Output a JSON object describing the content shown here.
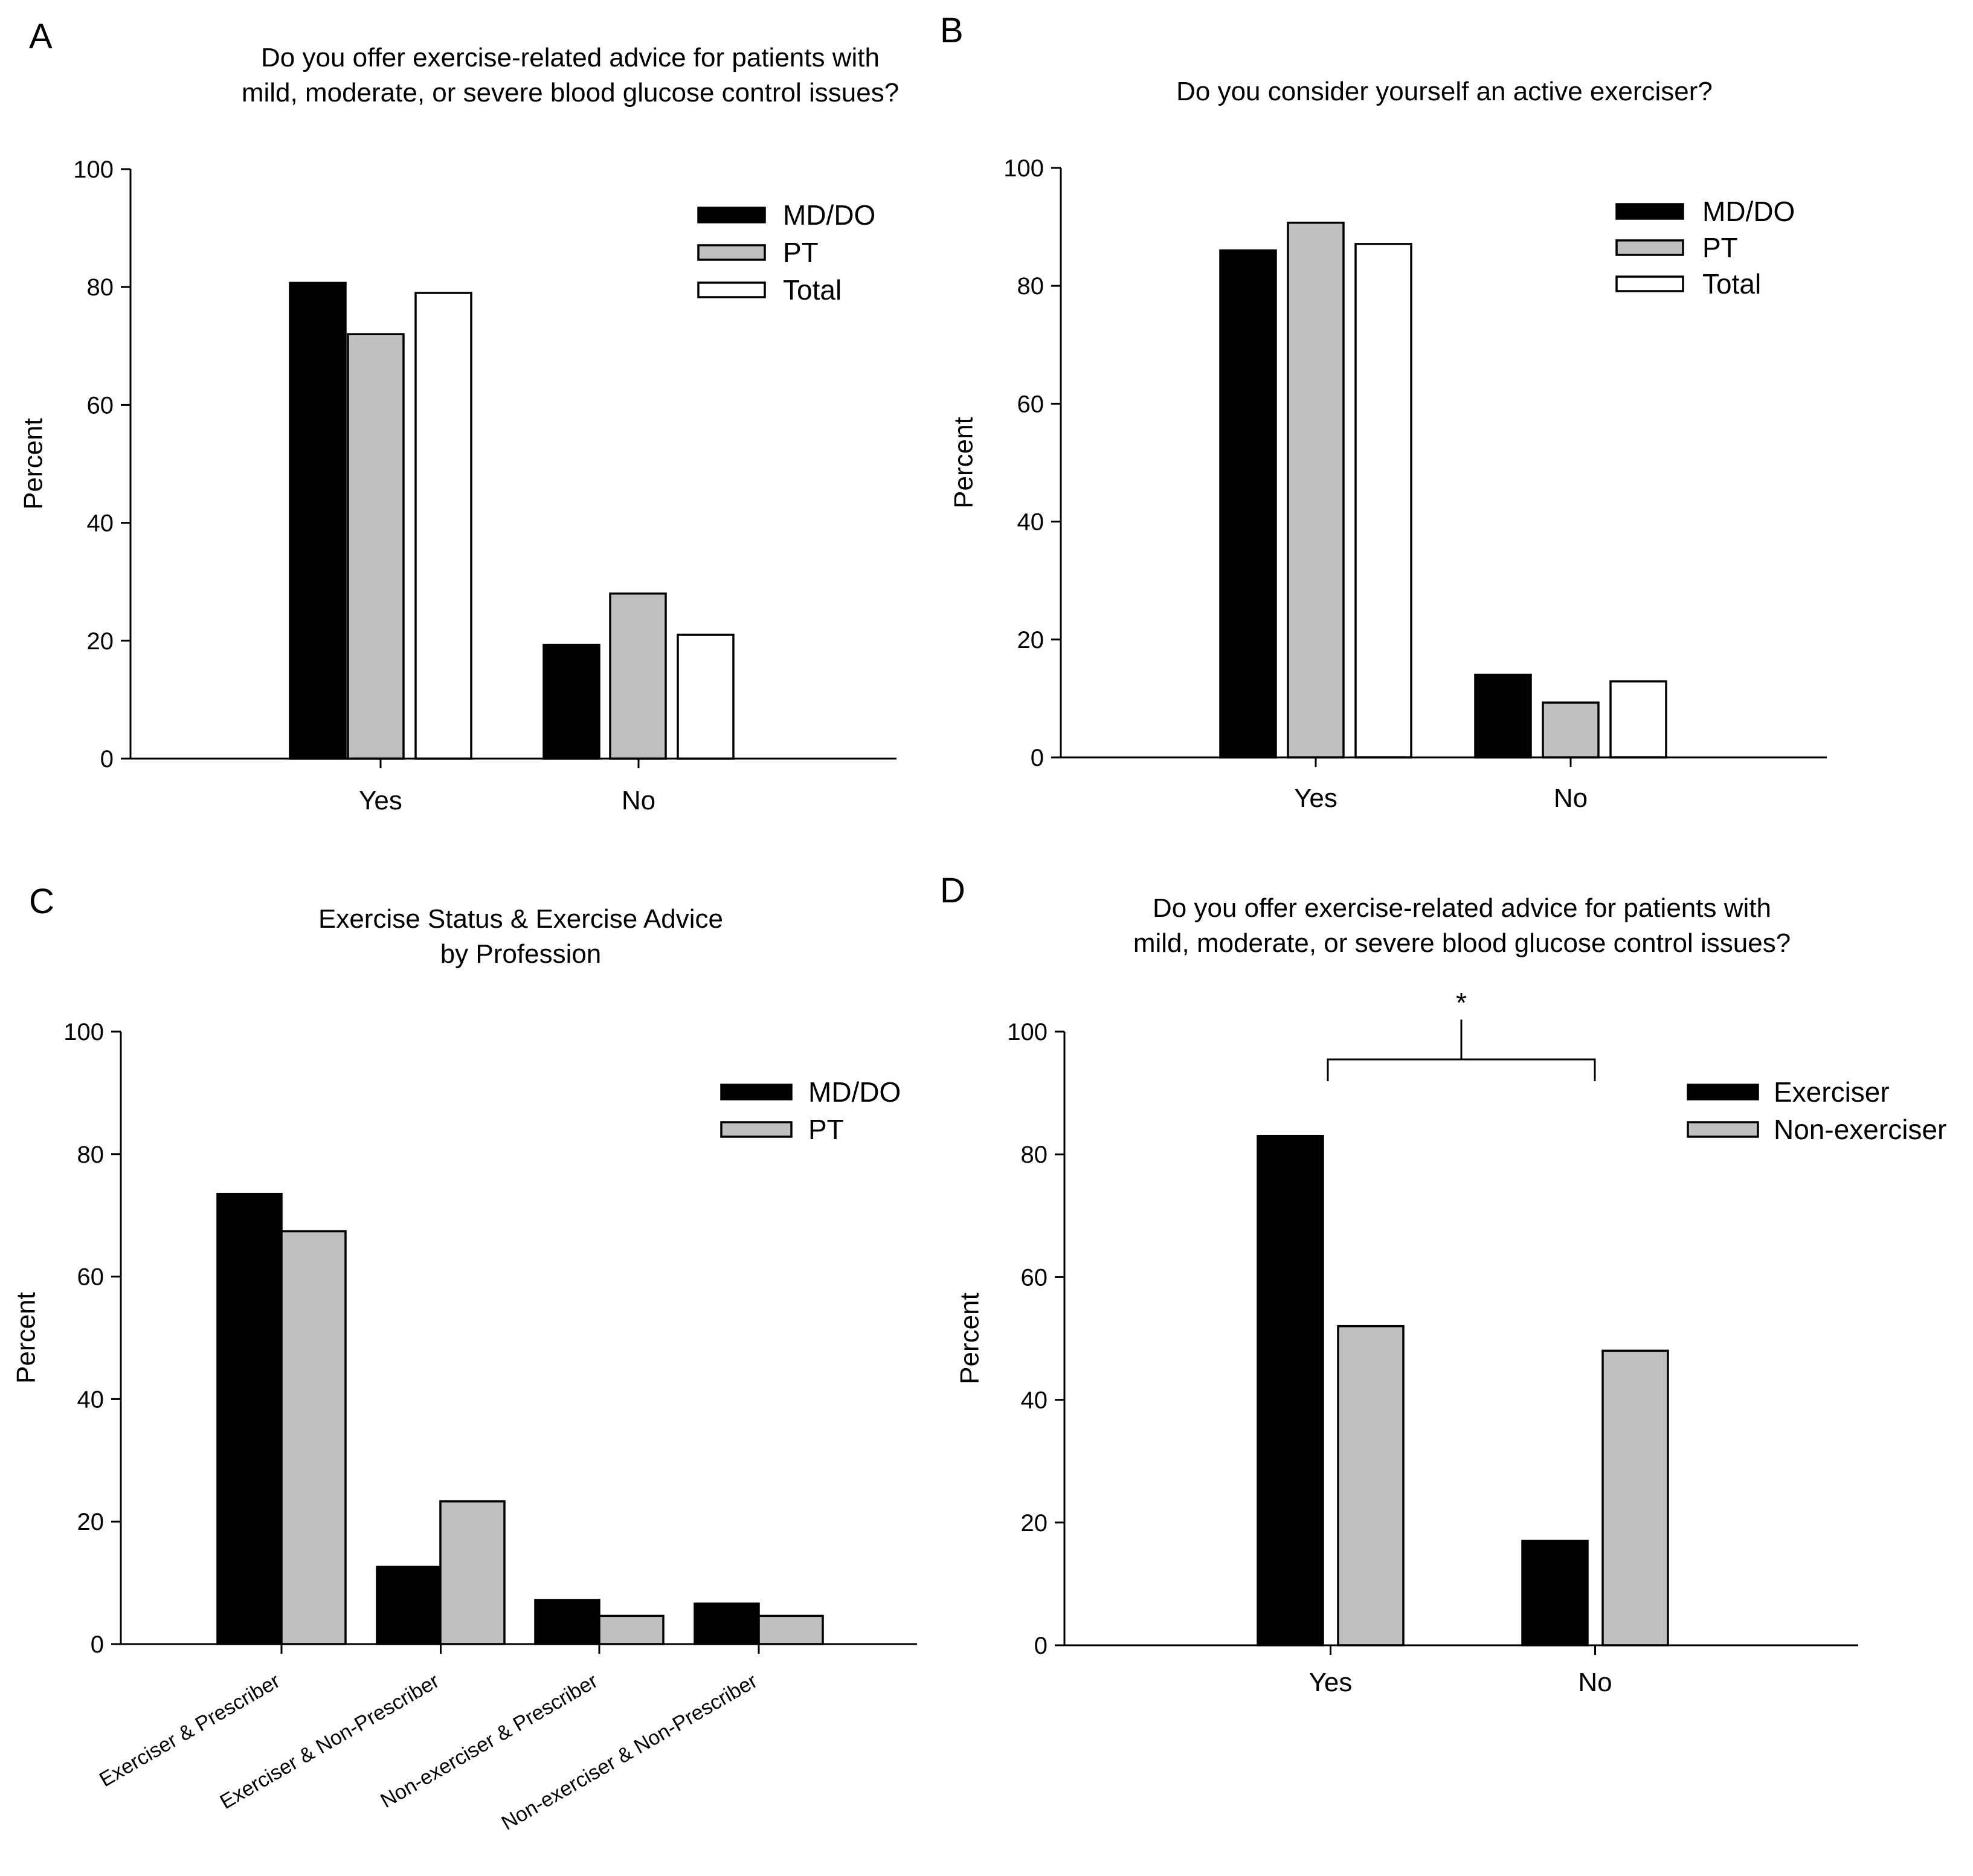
{
  "colors": {
    "MD/DO": "#000000",
    "PT": "#c0c0c0",
    "Total": "#ffffff",
    "Exerciser": "#000000",
    "Non-exerciser": "#c0c0c0"
  },
  "chart_data": [
    {
      "panel": "A",
      "type": "bar",
      "title": [
        "Do you offer exercise-related advice for patients with",
        "mild, moderate, or severe blood glucose control issues?"
      ],
      "xlabel": "",
      "ylabel": "Percent",
      "ylim": [
        0,
        100
      ],
      "yticks": [
        "0",
        "20",
        "40",
        "60",
        "80",
        "100"
      ],
      "categories": [
        "Yes",
        "No"
      ],
      "series": [
        {
          "name": "MD/DO",
          "values": [
            80.7,
            19.3
          ]
        },
        {
          "name": "PT",
          "values": [
            72,
            28
          ]
        },
        {
          "name": "Total",
          "values": [
            79,
            21
          ]
        }
      ],
      "legend": "top-right"
    },
    {
      "panel": "B",
      "type": "bar",
      "title": [
        "Do you consider yourself an active exerciser?"
      ],
      "xlabel": "",
      "ylabel": "Percent",
      "ylim": [
        0,
        100
      ],
      "yticks": [
        "0",
        "20",
        "40",
        "60",
        "80",
        "100"
      ],
      "categories": [
        "Yes",
        "No"
      ],
      "series": [
        {
          "name": "MD/DO",
          "values": [
            86,
            14
          ]
        },
        {
          "name": "PT",
          "values": [
            90.7,
            9.3
          ]
        },
        {
          "name": "Total",
          "values": [
            87.1,
            12.9
          ]
        }
      ],
      "legend": "top-right"
    },
    {
      "panel": "C",
      "type": "bar",
      "title": [
        "Exercise Status & Exercise Advice",
        "by Profession"
      ],
      "xlabel": "",
      "ylabel": "Percent",
      "ylim": [
        0,
        100
      ],
      "yticks": [
        "0",
        "20",
        "40",
        "60",
        "80",
        "100"
      ],
      "categories": [
        "Exerciser & Prescriber",
        "Exerciser & Non-Prescriber",
        "Non-exerciser & Prescriber",
        "Non-exerciser & Non-Prescriber"
      ],
      "series": [
        {
          "name": "MD/DO",
          "values": [
            73.5,
            12.6,
            7.2,
            6.6
          ]
        },
        {
          "name": "PT",
          "values": [
            67.4,
            23.3,
            4.6,
            4.6
          ]
        }
      ],
      "legend": "top-right"
    },
    {
      "panel": "D",
      "type": "bar",
      "title": [
        "Do you offer exercise-related advice for patients with",
        "mild, moderate, or severe blood glucose control issues?"
      ],
      "xlabel": "",
      "ylabel": "Percent",
      "ylim": [
        0,
        100
      ],
      "yticks": [
        "0",
        "20",
        "40",
        "60",
        "80",
        "100"
      ],
      "categories": [
        "Yes",
        "No"
      ],
      "series": [
        {
          "name": "Exerciser",
          "values": [
            83,
            17
          ]
        },
        {
          "name": "Non-exerciser",
          "values": [
            52,
            48
          ]
        }
      ],
      "significance": "*",
      "legend": "top-right"
    }
  ]
}
